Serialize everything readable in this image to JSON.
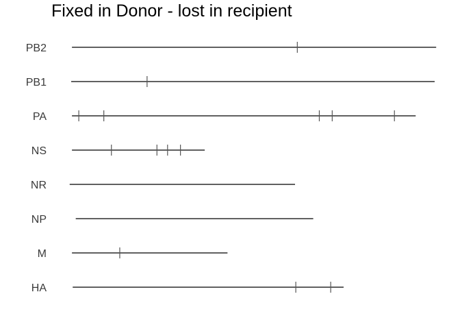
{
  "chart_data": {
    "type": "segment-map",
    "title": "Fixed in Donor - lost in recipient",
    "xlabel": "",
    "ylabel": "",
    "grid": false,
    "legend": "none",
    "xlim": [
      0,
      2400
    ],
    "segments": [
      {
        "name": "PB2",
        "start": 5,
        "end": 2405,
        "mutations": [
          1490
        ]
      },
      {
        "name": "PB1",
        "start": 0,
        "end": 2395,
        "mutations": [
          500
        ]
      },
      {
        "name": "PA",
        "start": 5,
        "end": 2270,
        "mutations": [
          50,
          215,
          1635,
          1720,
          2130
        ]
      },
      {
        "name": "NS",
        "start": 5,
        "end": 880,
        "mutations": [
          265,
          565,
          635,
          720
        ]
      },
      {
        "name": "NR",
        "start": -10,
        "end": 1475,
        "mutations": []
      },
      {
        "name": "NP",
        "start": 30,
        "end": 1595,
        "mutations": []
      },
      {
        "name": "M",
        "start": 5,
        "end": 1030,
        "mutations": [
          320
        ]
      },
      {
        "name": "HA",
        "start": 10,
        "end": 1795,
        "mutations": [
          1480,
          1710
        ]
      }
    ],
    "colors": {
      "line": "#000000",
      "tick": "#555555",
      "label": "#3a3a3a"
    }
  }
}
